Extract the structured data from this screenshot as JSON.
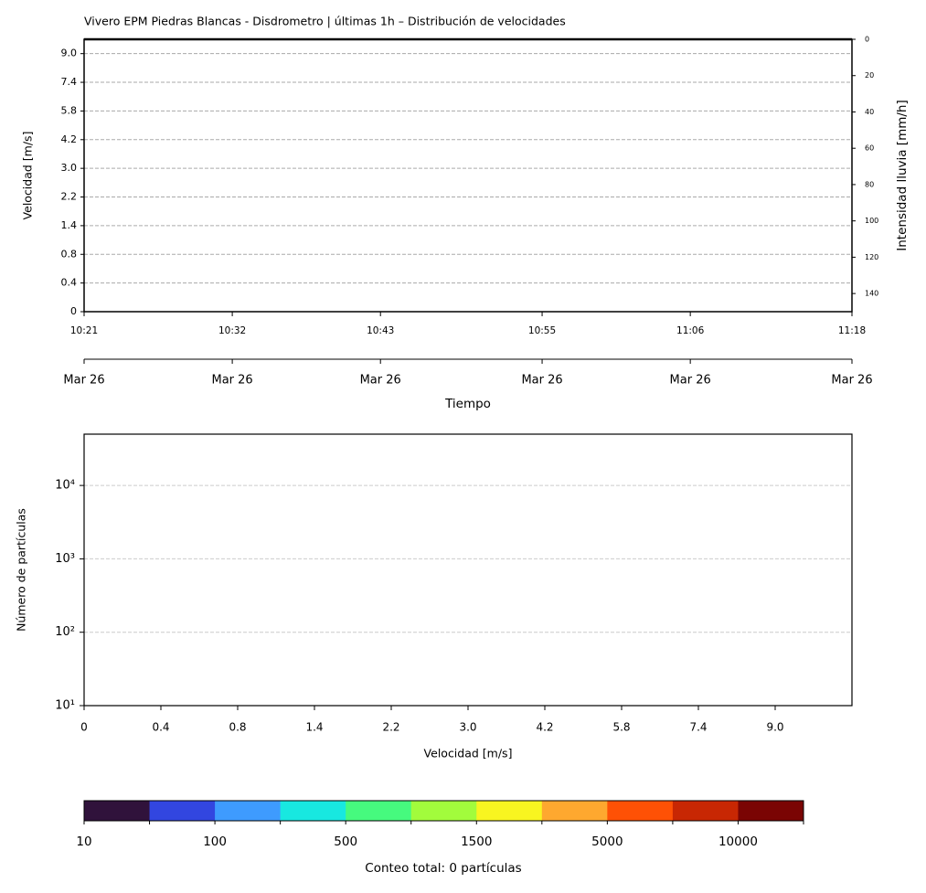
{
  "chart_data": [
    {
      "type": "heatmap",
      "title": "Vivero EPM Piedras Blancas - Disdrometro | últimas 1h – Distribución de velocidades",
      "y_label": "Velocidad [m/s]",
      "y_categories": [
        "0",
        "0.4",
        "0.8",
        "1.4",
        "2.2",
        "3.0",
        "4.2",
        "5.8",
        "7.4",
        "9.0"
      ],
      "y2_label": "Intensidad lluvia [mm/h]",
      "y2lim": [
        0,
        150
      ],
      "y2ticks": [
        0,
        20,
        40,
        60,
        80,
        100,
        120,
        140
      ],
      "y2_inverted": true,
      "x_label": "Tiempo",
      "xlim": [
        "10:21",
        "11:18"
      ],
      "xticks": [
        "10:21",
        "10:32",
        "10:43",
        "10:55",
        "11:06",
        "11:18"
      ],
      "xticks_date": [
        "Mar 26",
        "Mar 26",
        "Mar 26",
        "Mar 26",
        "Mar 26",
        "Mar 26"
      ],
      "grid": true
    },
    {
      "type": "histogram",
      "x_label": "Velocidad [m/s]",
      "y_label": "Número de partículas",
      "x_categories": [
        "0",
        "0.4",
        "0.8",
        "1.4",
        "2.2",
        "3.0",
        "4.2",
        "5.8",
        "7.4",
        "9.0"
      ],
      "yscale": "log",
      "ylim": [
        10,
        50000
      ],
      "yticks": [
        {
          "value": 10,
          "label": "10¹"
        },
        {
          "value": 100,
          "label": "10²"
        },
        {
          "value": 1000,
          "label": "10³"
        },
        {
          "value": 10000,
          "label": "10⁴"
        }
      ],
      "grid": true
    },
    {
      "type": "colorbar",
      "label": "Conteo total: 0 partículas",
      "colors": [
        "#30123b",
        "#3246e0",
        "#3e9bfe",
        "#18e8e0",
        "#46fa7e",
        "#a2fc3c",
        "#f8f520",
        "#fea82f",
        "#fe5105",
        "#c82703",
        "#7a0403"
      ],
      "ticks": [
        10,
        null,
        100,
        null,
        500,
        null,
        1500,
        null,
        5000,
        null,
        10000,
        null
      ]
    }
  ]
}
